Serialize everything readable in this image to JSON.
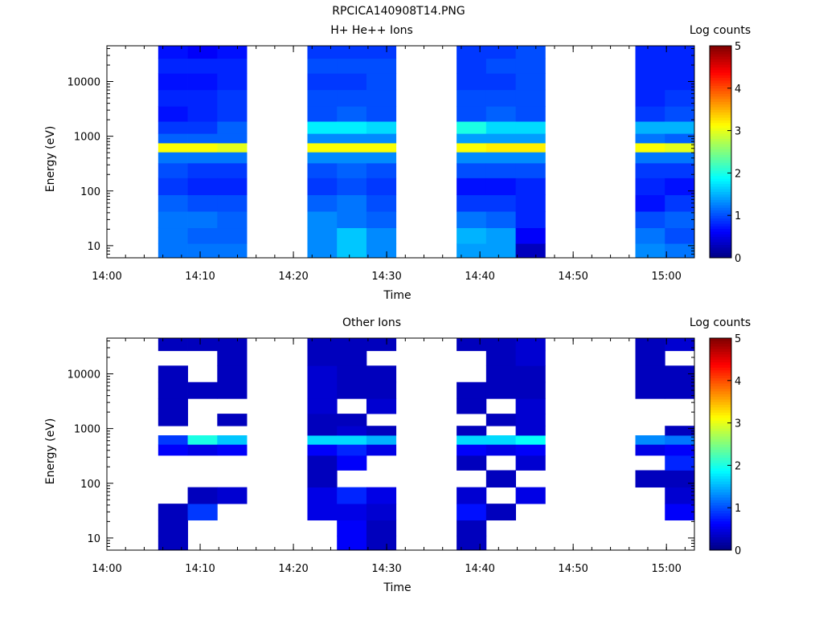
{
  "figure": {
    "title": "RPCICA140908T14.PNG"
  },
  "chart_data": [
    {
      "type": "heatmap",
      "title": "H+ He++ Ions",
      "xlabel": "Time",
      "ylabel": "Energy (eV)",
      "x_ticks": [
        "14:00",
        "14:10",
        "14:20",
        "14:30",
        "14:40",
        "14:50",
        "15:00"
      ],
      "y_ticks": [
        "10",
        "100",
        "1000",
        "10000"
      ],
      "yscale": "log",
      "xlim": [
        "14:00",
        "15:03"
      ],
      "ylim": [
        6,
        45000
      ],
      "colorbar": {
        "label": "Log counts",
        "ticks": [
          "0",
          "1",
          "2",
          "3",
          "4",
          "5"
        ],
        "range": [
          0,
          5
        ]
      },
      "time_bins": [
        "14:05:30-14:08:40",
        "14:08:40-14:11:50",
        "14:11:50-14:15:00",
        "14:21:30-14:24:40",
        "14:24:40-14:27:50",
        "14:27:50-14:31:00",
        "14:37:30-14:40:40",
        "14:40:40-14:43:50",
        "14:43:50-14:47:00",
        "14:56:40-14:59:50",
        "14:59:50-15:03:00"
      ],
      "energy_bins_eV": [
        8,
        15,
        30,
        60,
        120,
        250,
        420,
        630,
        900,
        1400,
        2500,
        5000,
        10000,
        20000,
        35000
      ],
      "log_counts": [
        [
          1.2,
          1.2,
          1.2,
          1.3,
          1.6,
          1.3,
          1.4,
          1.4,
          0.3,
          1.3,
          1.2
        ],
        [
          1.2,
          1.1,
          1.1,
          1.3,
          1.6,
          1.3,
          1.5,
          1.4,
          0.6,
          1.2,
          1.0
        ],
        [
          1.2,
          1.2,
          1.1,
          1.3,
          1.2,
          1.1,
          1.2,
          1.1,
          0.8,
          1.0,
          1.1
        ],
        [
          1.1,
          1.0,
          1.0,
          1.1,
          1.2,
          1.0,
          0.9,
          0.9,
          0.8,
          0.7,
          0.9
        ],
        [
          0.9,
          0.8,
          0.8,
          0.9,
          1.0,
          0.9,
          0.7,
          0.7,
          0.8,
          0.8,
          0.7
        ],
        [
          1.0,
          0.9,
          0.9,
          1.0,
          1.1,
          1.0,
          1.0,
          1.0,
          1.0,
          0.9,
          0.9
        ],
        [
          1.2,
          1.2,
          1.2,
          1.3,
          1.3,
          1.3,
          1.3,
          1.3,
          1.3,
          1.2,
          1.2
        ],
        [
          3.1,
          3.1,
          3.0,
          3.1,
          3.1,
          3.1,
          3.1,
          3.2,
          3.2,
          3.1,
          3.0
        ],
        [
          1.1,
          1.1,
          1.1,
          1.3,
          1.3,
          1.3,
          1.4,
          1.4,
          1.4,
          1.2,
          1.1
        ],
        [
          0.9,
          0.9,
          1.1,
          1.8,
          1.8,
          1.7,
          2.0,
          1.7,
          1.7,
          1.5,
          1.5
        ],
        [
          0.7,
          0.8,
          0.9,
          1.0,
          1.1,
          1.0,
          1.0,
          1.1,
          1.0,
          0.9,
          1.0
        ],
        [
          0.8,
          0.8,
          0.9,
          1.0,
          1.0,
          1.0,
          1.0,
          1.0,
          1.0,
          0.8,
          0.9
        ],
        [
          0.7,
          0.7,
          0.8,
          0.9,
          0.9,
          1.0,
          0.9,
          0.9,
          1.0,
          0.8,
          0.8
        ],
        [
          0.8,
          0.8,
          0.8,
          1.0,
          1.0,
          1.0,
          0.9,
          1.0,
          1.0,
          0.8,
          0.8
        ],
        [
          0.7,
          0.6,
          0.7,
          0.9,
          0.9,
          0.9,
          0.9,
          0.9,
          1.0,
          0.8,
          0.8
        ]
      ]
    },
    {
      "type": "heatmap",
      "title": "Other Ions",
      "xlabel": "Time",
      "ylabel": "Energy (eV)",
      "x_ticks": [
        "14:00",
        "14:10",
        "14:20",
        "14:30",
        "14:40",
        "14:50",
        "15:00"
      ],
      "y_ticks": [
        "10",
        "100",
        "1000",
        "10000"
      ],
      "yscale": "log",
      "xlim": [
        "14:00",
        "15:03"
      ],
      "ylim": [
        6,
        45000
      ],
      "colorbar": {
        "label": "Log counts",
        "ticks": [
          "0",
          "1",
          "2",
          "3",
          "4",
          "5"
        ],
        "range": [
          0,
          5
        ]
      },
      "time_bins": [
        "14:05:30-14:08:40",
        "14:08:40-14:11:50",
        "14:11:50-14:15:00",
        "14:21:30-14:24:40",
        "14:24:40-14:27:50",
        "14:27:50-14:31:00",
        "14:37:30-14:40:40",
        "14:40:40-14:43:50",
        "14:43:50-14:47:00",
        "14:56:40-14:59:50",
        "14:59:50-15:03:00"
      ],
      "energy_bins_eV": [
        8,
        15,
        30,
        60,
        120,
        250,
        420,
        630,
        900,
        1400,
        2500,
        5000,
        10000,
        20000,
        35000
      ],
      "log_counts": [
        [
          0.3,
          null,
          null,
          null,
          0.6,
          0.3,
          0.3,
          null,
          null,
          null,
          null
        ],
        [
          0.3,
          null,
          null,
          null,
          0.6,
          0.3,
          0.3,
          null,
          null,
          null,
          null
        ],
        [
          0.3,
          0.9,
          null,
          0.5,
          0.5,
          0.4,
          0.7,
          0.3,
          null,
          null,
          0.6
        ],
        [
          null,
          0.3,
          0.4,
          0.5,
          0.8,
          0.5,
          0.4,
          null,
          0.5,
          null,
          0.4
        ],
        [
          null,
          null,
          null,
          0.3,
          null,
          null,
          null,
          0.3,
          null,
          0.3,
          0.3
        ],
        [
          null,
          null,
          null,
          0.3,
          0.6,
          null,
          0.3,
          null,
          0.4,
          null,
          0.8
        ],
        [
          0.6,
          0.5,
          0.6,
          0.6,
          0.8,
          0.5,
          0.6,
          0.5,
          0.6,
          0.5,
          0.6
        ],
        [
          0.9,
          2.0,
          1.6,
          1.7,
          1.7,
          1.5,
          1.7,
          1.7,
          1.9,
          1.3,
          1.2
        ],
        [
          null,
          null,
          null,
          0.3,
          0.4,
          0.3,
          0.3,
          null,
          0.4,
          null,
          0.3
        ],
        [
          0.3,
          null,
          0.3,
          0.3,
          0.3,
          null,
          null,
          0.3,
          0.4,
          null,
          null
        ],
        [
          0.3,
          null,
          null,
          0.4,
          null,
          0.4,
          0.3,
          null,
          0.4,
          null,
          null
        ],
        [
          0.3,
          0.3,
          0.3,
          0.4,
          0.3,
          0.3,
          0.3,
          0.3,
          0.3,
          0.3,
          0.3
        ],
        [
          0.3,
          null,
          0.3,
          0.4,
          0.3,
          0.3,
          null,
          0.3,
          0.3,
          0.3,
          0.3
        ],
        [
          null,
          null,
          0.3,
          0.3,
          0.3,
          null,
          null,
          0.3,
          0.4,
          0.3,
          null
        ],
        [
          0.3,
          0.3,
          0.3,
          0.3,
          0.3,
          0.3,
          0.3,
          0.3,
          0.4,
          0.3,
          0.4
        ]
      ]
    }
  ]
}
